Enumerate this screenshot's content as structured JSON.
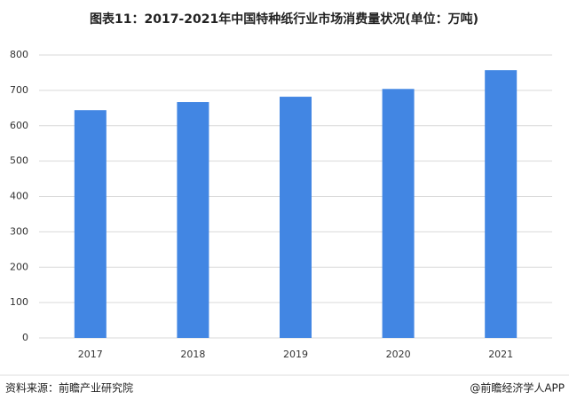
{
  "chart_data": {
    "type": "bar",
    "title": "图表11：2017-2021年中国特种纸行业市场消费量状况(单位：万吨)",
    "categories": [
      "2017",
      "2018",
      "2019",
      "2020",
      "2021"
    ],
    "values": [
      644,
      667,
      682,
      704,
      757
    ],
    "color": "#4286e3",
    "ylim": [
      0,
      800
    ],
    "yticks": [
      0,
      100,
      200,
      300,
      400,
      500,
      600,
      700,
      800
    ],
    "grid": true
  },
  "footer": {
    "source": "资料来源：前瞻产业研究院",
    "brand": "@前瞻经济学人APP"
  }
}
